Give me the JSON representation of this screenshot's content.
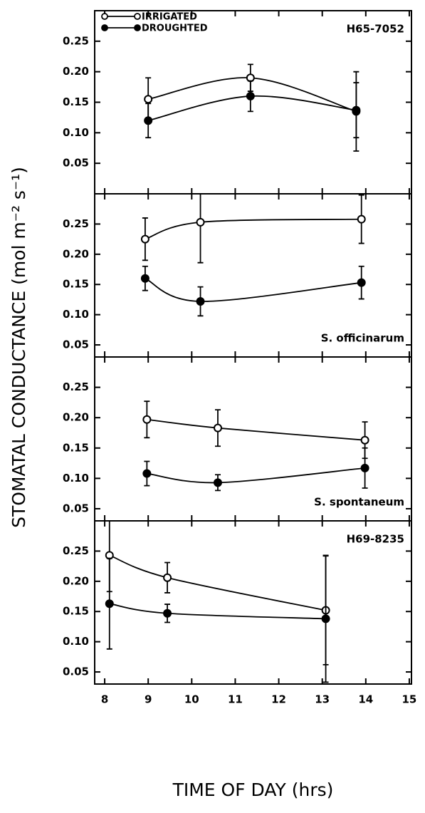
{
  "chart_data": [
    {
      "type": "line",
      "annotation": "H65-7052",
      "annotation_position": "top-right",
      "legend": "top-left",
      "ylabel": "STOMATAL CONDUCTANCE (mol m⁻² s⁻¹)",
      "xlim": [
        7.77,
        15.05
      ],
      "xticks": [
        8,
        9,
        10,
        11,
        12,
        13,
        14,
        15
      ],
      "ylim": [
        0,
        0.3
      ],
      "yticks": [
        0.05,
        {
          "value": 0.1,
          "label": "0.10"
        },
        0.15,
        {
          "value": 0.2,
          "label": "0.20"
        },
        0.25
      ],
      "series": [
        {
          "name": "IRRIGATED",
          "color": "#000000",
          "marker": "open",
          "x": [
            9.0,
            11.35,
            13.78
          ],
          "values": [
            0.155,
            0.19,
            0.135
          ],
          "errors": [
            0.035,
            0.022,
            0.065
          ]
        },
        {
          "name": "DROUGHTED",
          "color": "#000000",
          "marker": "filled",
          "x": [
            9.0,
            11.35,
            13.78
          ],
          "values": [
            0.12,
            0.16,
            0.137
          ],
          "errors": [
            0.028,
            0.025,
            0.045
          ]
        }
      ]
    },
    {
      "type": "line",
      "annotation": "S. officinarum",
      "annotation_position": "bottom-right",
      "xlim": [
        7.77,
        15.05
      ],
      "xticks": [
        8,
        9,
        10,
        11,
        12,
        13,
        14,
        15
      ],
      "ylim": [
        0.03,
        0.3
      ],
      "yticks": [
        0.05,
        {
          "value": 0.1,
          "label": "0.10"
        },
        0.15,
        {
          "value": 0.2,
          "label": "0.20"
        },
        0.25
      ],
      "series": [
        {
          "color": "#000000",
          "marker": "open",
          "x": [
            8.93,
            10.2,
            13.9
          ],
          "values": [
            0.225,
            0.253,
            0.258
          ],
          "errors": [
            0.035,
            0.067,
            0.04
          ]
        },
        {
          "color": "#000000",
          "marker": "filled",
          "x": [
            8.93,
            10.2,
            13.9
          ],
          "values": [
            0.16,
            0.122,
            0.153
          ],
          "errors": [
            0.02,
            0.024,
            0.027
          ]
        }
      ]
    },
    {
      "type": "line",
      "annotation": "S. spontaneum",
      "annotation_position": "bottom-right",
      "xlim": [
        7.77,
        15.05
      ],
      "xticks": [
        8,
        9,
        10,
        11,
        12,
        13,
        14,
        15
      ],
      "ylim": [
        0.03,
        0.3
      ],
      "yticks": [
        0.05,
        {
          "value": 0.1,
          "label": "0.10"
        },
        0.15,
        {
          "value": 0.2,
          "label": "0.20"
        },
        0.25
      ],
      "series": [
        {
          "color": "#000000",
          "marker": "open",
          "x": [
            8.97,
            10.6,
            13.98
          ],
          "values": [
            0.197,
            0.183,
            0.163
          ],
          "errors": [
            0.03,
            0.03,
            0.03
          ]
        },
        {
          "color": "#000000",
          "marker": "filled",
          "x": [
            8.97,
            10.6,
            13.98
          ],
          "values": [
            0.108,
            0.093,
            0.117
          ],
          "errors": [
            0.02,
            0.013,
            0.033
          ]
        }
      ]
    },
    {
      "type": "line",
      "annotation": "H69-8235",
      "annotation_position": "top-right",
      "xlabel": "TIME OF DAY (hrs)",
      "xlim": [
        7.77,
        15.05
      ],
      "xticks": [
        8,
        9,
        10,
        11,
        12,
        13,
        14,
        15
      ],
      "ylim": [
        0.03,
        0.3
      ],
      "yticks": [
        0.05,
        {
          "value": 0.1,
          "label": "0.10"
        },
        0.15,
        {
          "value": 0.2,
          "label": "0.20"
        },
        0.25
      ],
      "series": [
        {
          "color": "#000000",
          "marker": "open",
          "x": [
            8.11,
            9.44,
            13.08
          ],
          "values": [
            0.243,
            0.206,
            0.152
          ],
          "errors": [
            0.06,
            0.025,
            0.09
          ]
        },
        {
          "color": "#000000",
          "marker": "filled",
          "x": [
            8.11,
            9.44,
            13.08
          ],
          "values": [
            0.163,
            0.147,
            0.138
          ],
          "errors": [
            0.075,
            0.015,
            0.105
          ]
        }
      ]
    }
  ]
}
